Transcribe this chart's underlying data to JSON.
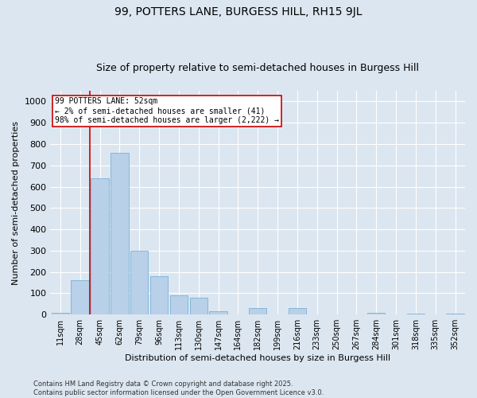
{
  "title": "99, POTTERS LANE, BURGESS HILL, RH15 9JL",
  "subtitle": "Size of property relative to semi-detached houses in Burgess Hill",
  "xlabel": "Distribution of semi-detached houses by size in Burgess Hill",
  "ylabel": "Number of semi-detached properties",
  "bar_color": "#b8d0e8",
  "bar_edge_color": "#6aaad4",
  "background_color": "#dce6f0",
  "grid_color": "#ffffff",
  "categories": [
    "11sqm",
    "28sqm",
    "45sqm",
    "62sqm",
    "79sqm",
    "96sqm",
    "113sqm",
    "130sqm",
    "147sqm",
    "164sqm",
    "182sqm",
    "199sqm",
    "216sqm",
    "233sqm",
    "250sqm",
    "267sqm",
    "284sqm",
    "301sqm",
    "318sqm",
    "335sqm",
    "352sqm"
  ],
  "values": [
    10,
    160,
    640,
    760,
    300,
    180,
    90,
    80,
    15,
    0,
    30,
    0,
    30,
    0,
    0,
    0,
    10,
    0,
    5,
    0,
    5
  ],
  "vline_x_index": 1.5,
  "vline_color": "#cc0000",
  "annotation_text": "99 POTTERS LANE: 52sqm\n← 2% of semi-detached houses are smaller (41)\n98% of semi-detached houses are larger (2,222) →",
  "ylim": [
    0,
    1050
  ],
  "yticks": [
    0,
    100,
    200,
    300,
    400,
    500,
    600,
    700,
    800,
    900,
    1000
  ],
  "footer": "Contains HM Land Registry data © Crown copyright and database right 2025.\nContains public sector information licensed under the Open Government Licence v3.0.",
  "title_fontsize": 10,
  "subtitle_fontsize": 9,
  "tick_fontsize": 7,
  "ylabel_fontsize": 8,
  "xlabel_fontsize": 8,
  "footer_fontsize": 6
}
